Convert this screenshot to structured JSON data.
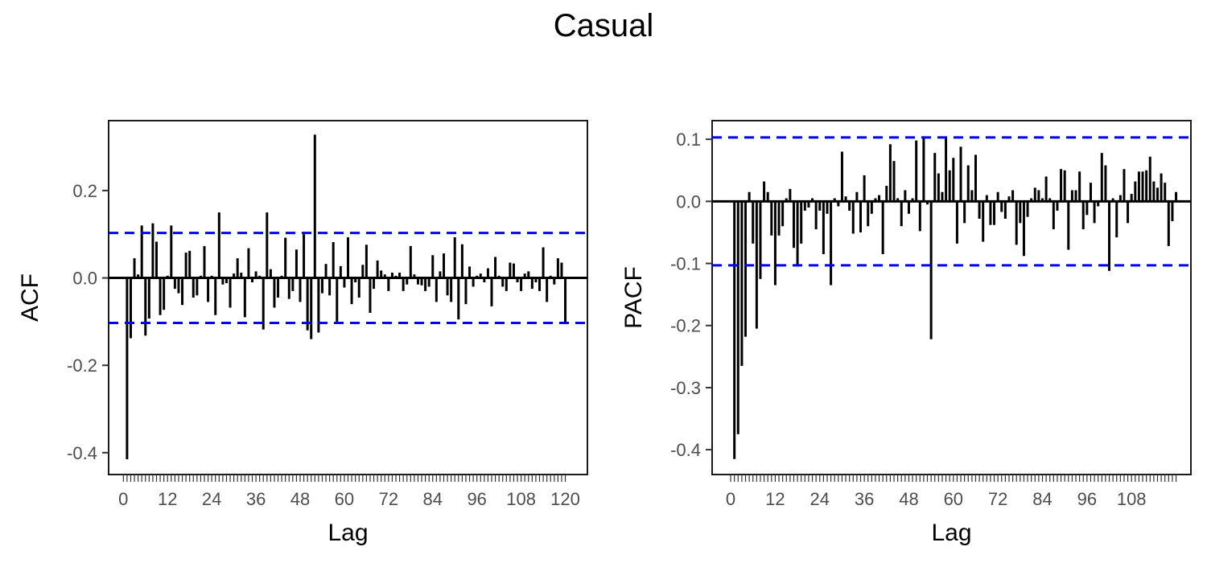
{
  "title": "Casual",
  "chart_data": [
    {
      "type": "bar",
      "name": "acf",
      "xlabel": "Lag",
      "ylabel": "ACF",
      "x_ticks": [
        0,
        12,
        24,
        36,
        48,
        60,
        72,
        84,
        96,
        108,
        120
      ],
      "y_ticks": [
        0.2,
        0.0,
        -0.2,
        -0.4
      ],
      "y_tick_labels": [
        "0.2",
        "0.0",
        "-0.2",
        "-0.4"
      ],
      "ylim": [
        -0.45,
        0.36
      ],
      "xlim": [
        -4,
        126
      ],
      "conf_limit": 0.103,
      "lags": [
        1,
        2,
        3,
        4,
        5,
        6,
        7,
        8,
        9,
        10,
        11,
        12,
        13,
        14,
        15,
        16,
        17,
        18,
        19,
        20,
        21,
        22,
        23,
        24,
        25,
        26,
        27,
        28,
        29,
        30,
        31,
        32,
        33,
        34,
        35,
        36,
        37,
        38,
        39,
        40,
        41,
        42,
        43,
        44,
        45,
        46,
        47,
        48,
        49,
        50,
        51,
        52,
        53,
        54,
        55,
        56,
        57,
        58,
        59,
        60,
        61,
        62,
        63,
        64,
        65,
        66,
        67,
        68,
        69,
        70,
        71,
        72,
        73,
        74,
        75,
        76,
        77,
        78,
        79,
        80,
        81,
        82,
        83,
        84,
        85,
        86,
        87,
        88,
        89,
        90,
        91,
        92,
        93,
        94,
        95,
        96,
        97,
        98,
        99,
        100,
        101,
        102,
        103,
        104,
        105,
        106,
        107,
        108,
        109,
        110,
        111,
        112,
        113,
        114,
        115,
        116,
        117,
        118,
        119,
        120
      ],
      "values": [
        -0.415,
        -0.138,
        0.045,
        0.008,
        0.12,
        -0.132,
        -0.093,
        0.125,
        0.083,
        -0.085,
        -0.073,
        0.005,
        0.12,
        -0.025,
        -0.035,
        -0.062,
        0.058,
        0.062,
        -0.045,
        -0.04,
        0.005,
        0.073,
        -0.055,
        0.005,
        -0.085,
        0.15,
        -0.015,
        -0.012,
        -0.068,
        0.01,
        0.045,
        0.012,
        -0.09,
        0.068,
        -0.01,
        0.015,
        0.005,
        -0.118,
        0.15,
        0.02,
        -0.068,
        -0.045,
        0.005,
        0.092,
        -0.048,
        -0.03,
        0.065,
        -0.055,
        0.1,
        -0.12,
        -0.14,
        0.328,
        -0.125,
        -0.035,
        0.032,
        -0.04,
        0.082,
        -0.1,
        0.027,
        -0.022,
        0.093,
        -0.06,
        -0.01,
        -0.045,
        0.03,
        0.076,
        -0.08,
        -0.025,
        0.04,
        0.017,
        0.008,
        -0.03,
        0.012,
        0.005,
        0.012,
        -0.03,
        -0.015,
        0.073,
        0.008,
        -0.015,
        -0.017,
        -0.03,
        -0.02,
        0.052,
        -0.055,
        0.015,
        0.056,
        -0.04,
        -0.055,
        0.093,
        -0.095,
        0.077,
        -0.06,
        0.026,
        -0.02,
        0.005,
        0.01,
        -0.01,
        0.022,
        -0.065,
        0.048,
        0.005,
        -0.02,
        -0.03,
        0.035,
        0.033,
        -0.01,
        -0.03,
        0.01,
        0.015,
        -0.025,
        -0.01,
        -0.03,
        0.07,
        -0.055,
        0.005,
        -0.015,
        0.045,
        0.035,
        -0.105,
        0.025
      ]
    },
    {
      "type": "bar",
      "name": "pacf",
      "xlabel": "Lag",
      "ylabel": "PACF",
      "x_ticks": [
        0,
        12,
        24,
        36,
        48,
        60,
        72,
        84,
        96,
        108
      ],
      "y_ticks": [
        0.1,
        0.0,
        -0.1,
        -0.2,
        -0.3,
        -0.4
      ],
      "y_tick_labels": [
        "0.1",
        "0.0",
        "-0.1",
        "-0.2",
        "-0.3",
        "-0.4"
      ],
      "ylim": [
        -0.44,
        0.13
      ],
      "xlim": [
        -5,
        124
      ],
      "conf_limit": 0.103,
      "lags": [
        1,
        2,
        3,
        4,
        5,
        6,
        7,
        8,
        9,
        10,
        11,
        12,
        13,
        14,
        15,
        16,
        17,
        18,
        19,
        20,
        21,
        22,
        23,
        24,
        25,
        26,
        27,
        28,
        29,
        30,
        31,
        32,
        33,
        34,
        35,
        36,
        37,
        38,
        39,
        40,
        41,
        42,
        43,
        44,
        45,
        46,
        47,
        48,
        49,
        50,
        51,
        52,
        53,
        54,
        55,
        56,
        57,
        58,
        59,
        60,
        61,
        62,
        63,
        64,
        65,
        66,
        67,
        68,
        69,
        70,
        71,
        72,
        73,
        74,
        75,
        76,
        77,
        78,
        79,
        80,
        81,
        82,
        83,
        84,
        85,
        86,
        87,
        88,
        89,
        90,
        91,
        92,
        93,
        94,
        95,
        96,
        97,
        98,
        99,
        100,
        101,
        102,
        103,
        104,
        105,
        106,
        107,
        108,
        109,
        110,
        111,
        112,
        113,
        114,
        115,
        116,
        117,
        118,
        119,
        120
      ],
      "values": [
        -0.415,
        -0.375,
        -0.265,
        -0.218,
        0.015,
        -0.068,
        -0.205,
        -0.125,
        0.032,
        0.015,
        -0.055,
        -0.135,
        -0.055,
        -0.04,
        0.005,
        0.02,
        -0.075,
        -0.105,
        -0.068,
        -0.015,
        -0.01,
        0.005,
        -0.045,
        -0.015,
        -0.085,
        -0.02,
        -0.135,
        0.005,
        -0.008,
        0.08,
        0.008,
        -0.015,
        -0.052,
        0.015,
        -0.05,
        0.042,
        -0.04,
        -0.02,
        0.005,
        0.01,
        -0.085,
        0.025,
        0.092,
        0.065,
        0.005,
        -0.04,
        0.018,
        -0.02,
        0.005,
        0.098,
        -0.048,
        0.102,
        -0.005,
        -0.222,
        0.078,
        0.045,
        0.015,
        0.102,
        0.05,
        0.07,
        -0.068,
        0.088,
        -0.035,
        0.058,
        0.018,
        0.075,
        -0.028,
        -0.065,
        0.01,
        -0.038,
        -0.038,
        0.015,
        -0.017,
        -0.028,
        0.008,
        0.018,
        -0.07,
        -0.035,
        -0.088,
        -0.025,
        0.005,
        0.022,
        0.018,
        0.005,
        0.04,
        0.005,
        -0.045,
        -0.015,
        0.052,
        0.05,
        -0.078,
        0.018,
        0.018,
        0.048,
        -0.045,
        -0.022,
        0.03,
        -0.035,
        -0.008,
        0.078,
        0.058,
        -0.112,
        0.005,
        -0.058,
        0.01,
        0.052,
        -0.035,
        0.012,
        0.032,
        0.048,
        0.048,
        0.05,
        0.072,
        0.032,
        0.022,
        0.045,
        0.03,
        -0.072,
        -0.032,
        0.015,
        0.022,
        -0.052,
        -0.015
      ]
    }
  ]
}
